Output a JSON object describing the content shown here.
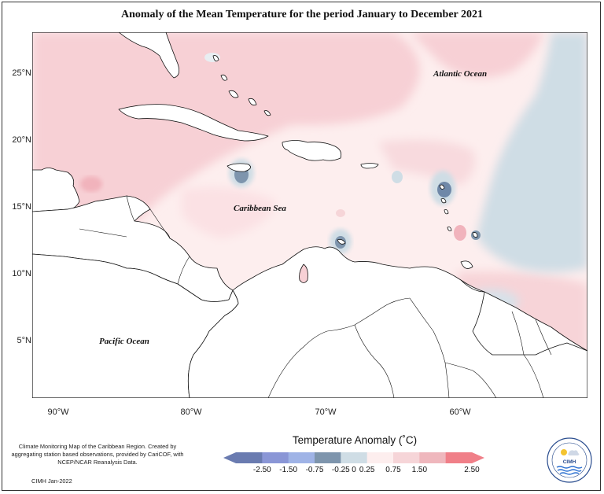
{
  "title": "Anomaly of the Mean Temperature for the period January to December 2021",
  "lat_labels": [
    "25°N",
    "20°N",
    "15°N",
    "10°N",
    "5°N"
  ],
  "lon_labels": [
    "90°W",
    "80°W",
    "70°W",
    "60°W"
  ],
  "ocean_labels": {
    "atlantic": "Atlantic Ocean",
    "caribbean": "Caribbean Sea",
    "pacific": "Pacific Ocean"
  },
  "credit_text": "Climate Monitoring Map of the Caribbean Region. Created by aggregating station based observations, provided by CariCOF, with NCEP/NCAR Reanalysis Data.",
  "date_text": "CIMH  Jan-2022",
  "legend": {
    "title": "Temperature Anomaly (˚C)",
    "labels": [
      "-2.50",
      "-1.50",
      "-0.75",
      "-0.25",
      "0",
      "0.25",
      "0.75",
      "1.50",
      "2.50"
    ],
    "colors": [
      "#6a7bb0",
      "#8a96d6",
      "#9fb3e6",
      "#7e95ad",
      "#cfdde5",
      "#fdeeee",
      "#f6d5d8",
      "#efb7bd",
      "#f07f88"
    ]
  },
  "logo_text": "CIMH",
  "colors": {
    "warm_light": "#fde8ea",
    "warm_mid": "#f7d0d5",
    "warm_strong": "#f1b3bc",
    "cool_light": "#cfdde5",
    "cool_mid": "#a8bfd2",
    "cool_strong": "#6f88a8"
  }
}
